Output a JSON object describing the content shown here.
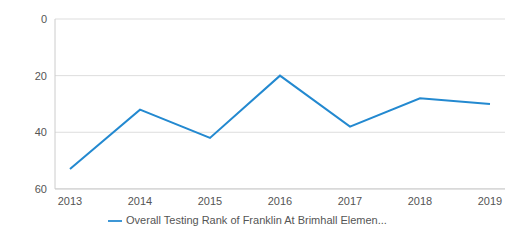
{
  "chart_data": {
    "type": "line",
    "categories": [
      "2013",
      "2014",
      "2015",
      "2016",
      "2017",
      "2018",
      "2019"
    ],
    "series": [
      {
        "name": "Overall Testing Rank of Franklin At Brimhall Elemen...",
        "color": "#2389d0",
        "values": [
          53,
          32,
          42,
          20,
          38,
          28,
          30
        ]
      }
    ],
    "ylim": [
      60,
      0
    ],
    "yticks": [
      0,
      20,
      40,
      60
    ],
    "grid": true,
    "legend": "bottom"
  }
}
